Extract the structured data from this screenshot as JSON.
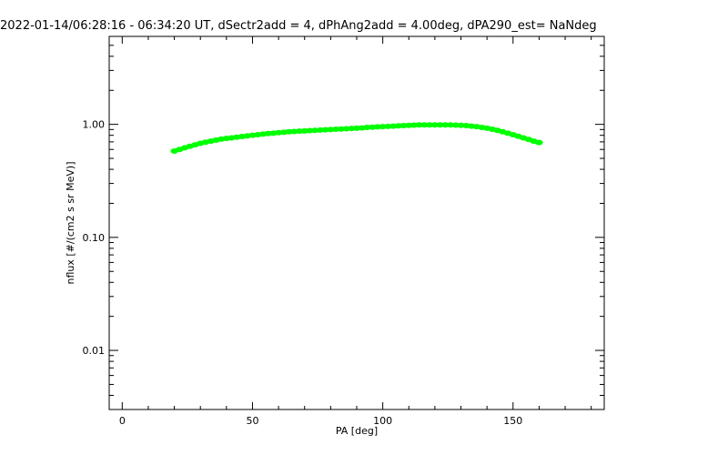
{
  "chart_data": {
    "type": "scatter",
    "title": "2022-01-14/06:28:16 - 06:34:20 UT, dSectr2add = 4, dPhAng2add = 4.00deg, dPA290_est=    NaNdeg",
    "xlabel": "PA [deg]",
    "ylabel": "nflux [#/(cm2 s sr MeV)]",
    "xlim": [
      -5,
      185
    ],
    "ylim": [
      0.003,
      6.0
    ],
    "yscale": "log",
    "x_ticks": [
      0,
      50,
      100,
      150
    ],
    "x_tick_labels": [
      "0",
      "50",
      "100",
      "150"
    ],
    "y_ticks": [
      0.01,
      0.1,
      1.0
    ],
    "y_tick_labels": [
      "0.01",
      "0.10",
      "1.00"
    ],
    "grid": false,
    "marker_color": "#00ff00",
    "series": [
      {
        "x": [
          20,
          22,
          24,
          26,
          28,
          30,
          32,
          34,
          36,
          38,
          40,
          42,
          44,
          46,
          48,
          50,
          52,
          54,
          56,
          58,
          60,
          62,
          64,
          66,
          68,
          70,
          72,
          74,
          76,
          78,
          80,
          82,
          84,
          86,
          88,
          90,
          92,
          94,
          96,
          98,
          100,
          102,
          104,
          106,
          108,
          110,
          112,
          114,
          116,
          118,
          120,
          122,
          124,
          126,
          128,
          130,
          132,
          134,
          136,
          138,
          140,
          142,
          144,
          146,
          148,
          150,
          152,
          154,
          156,
          158,
          160
        ],
        "y": [
          0.58,
          0.6,
          0.62,
          0.64,
          0.66,
          0.68,
          0.695,
          0.71,
          0.725,
          0.74,
          0.75,
          0.76,
          0.77,
          0.78,
          0.79,
          0.8,
          0.81,
          0.82,
          0.83,
          0.835,
          0.845,
          0.85,
          0.86,
          0.865,
          0.87,
          0.875,
          0.88,
          0.885,
          0.89,
          0.895,
          0.9,
          0.905,
          0.91,
          0.915,
          0.92,
          0.925,
          0.93,
          0.94,
          0.945,
          0.95,
          0.955,
          0.96,
          0.965,
          0.97,
          0.975,
          0.98,
          0.985,
          0.99,
          0.99,
          0.99,
          0.99,
          0.99,
          0.99,
          0.99,
          0.985,
          0.98,
          0.975,
          0.965,
          0.955,
          0.94,
          0.925,
          0.905,
          0.885,
          0.86,
          0.835,
          0.81,
          0.785,
          0.76,
          0.735,
          0.71,
          0.69
        ]
      }
    ]
  }
}
